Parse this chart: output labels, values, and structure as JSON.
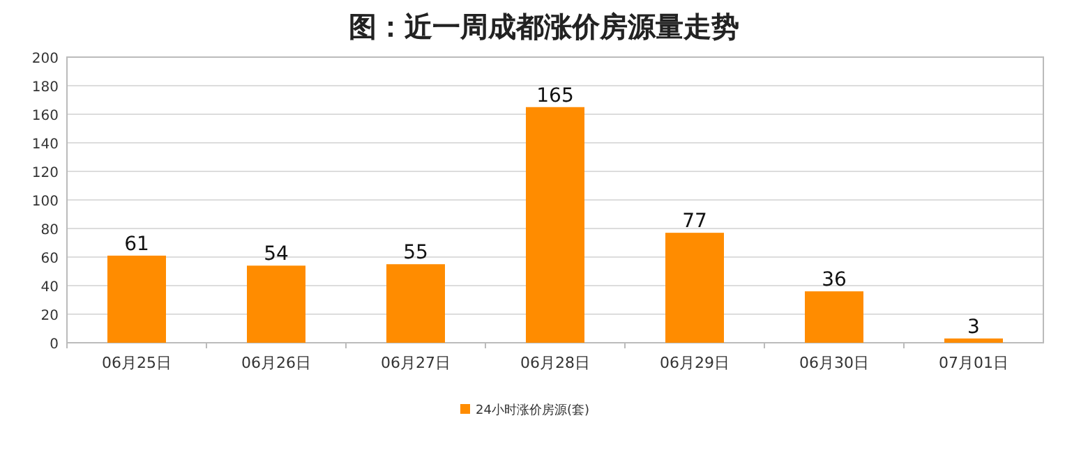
{
  "chart_data": {
    "type": "bar",
    "title": "图：近一周成都涨价房源量走势",
    "categories": [
      "06月25日",
      "06月26日",
      "06月27日",
      "06月28日",
      "06月29日",
      "06月30日",
      "07月01日"
    ],
    "series": [
      {
        "name": "24小时涨价房源(套)",
        "color": "#ff8c00",
        "values": [
          61,
          54,
          55,
          165,
          77,
          36,
          3
        ]
      }
    ],
    "ylim": [
      0,
      200
    ],
    "yticks": [
      0,
      20,
      40,
      60,
      80,
      100,
      120,
      140,
      160,
      180,
      200
    ],
    "grid": "y",
    "legend": "bottom",
    "data_labels": true
  }
}
